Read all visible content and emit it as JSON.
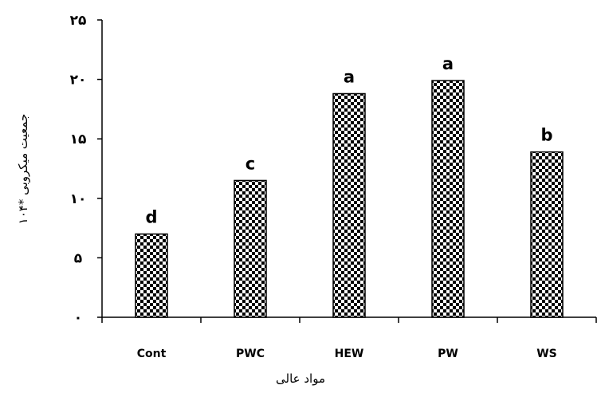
{
  "chart_data": {
    "type": "bar",
    "categories": [
      "Cont",
      "PWC",
      "HEW",
      "PW",
      "WS"
    ],
    "values": [
      7.0,
      11.5,
      18.8,
      19.9,
      13.9
    ],
    "significance_letters": [
      "d",
      "c",
      "a",
      "a",
      "b"
    ],
    "ylim": [
      0,
      25
    ],
    "yticks": [
      0,
      5,
      10,
      15,
      20,
      25
    ],
    "ytick_labels": [
      "٠",
      "۵",
      "١٠",
      "١۵",
      "٢٠",
      "٢۵"
    ],
    "xlabel": "مواد عالی",
    "ylabel": "جمعیت میکروبی *۱۰۴",
    "grid": false,
    "bar_pattern": "checkerboard",
    "colors": {
      "bar_dark": "#000000",
      "bar_light": "#ffffff",
      "axis": "#000000"
    }
  }
}
